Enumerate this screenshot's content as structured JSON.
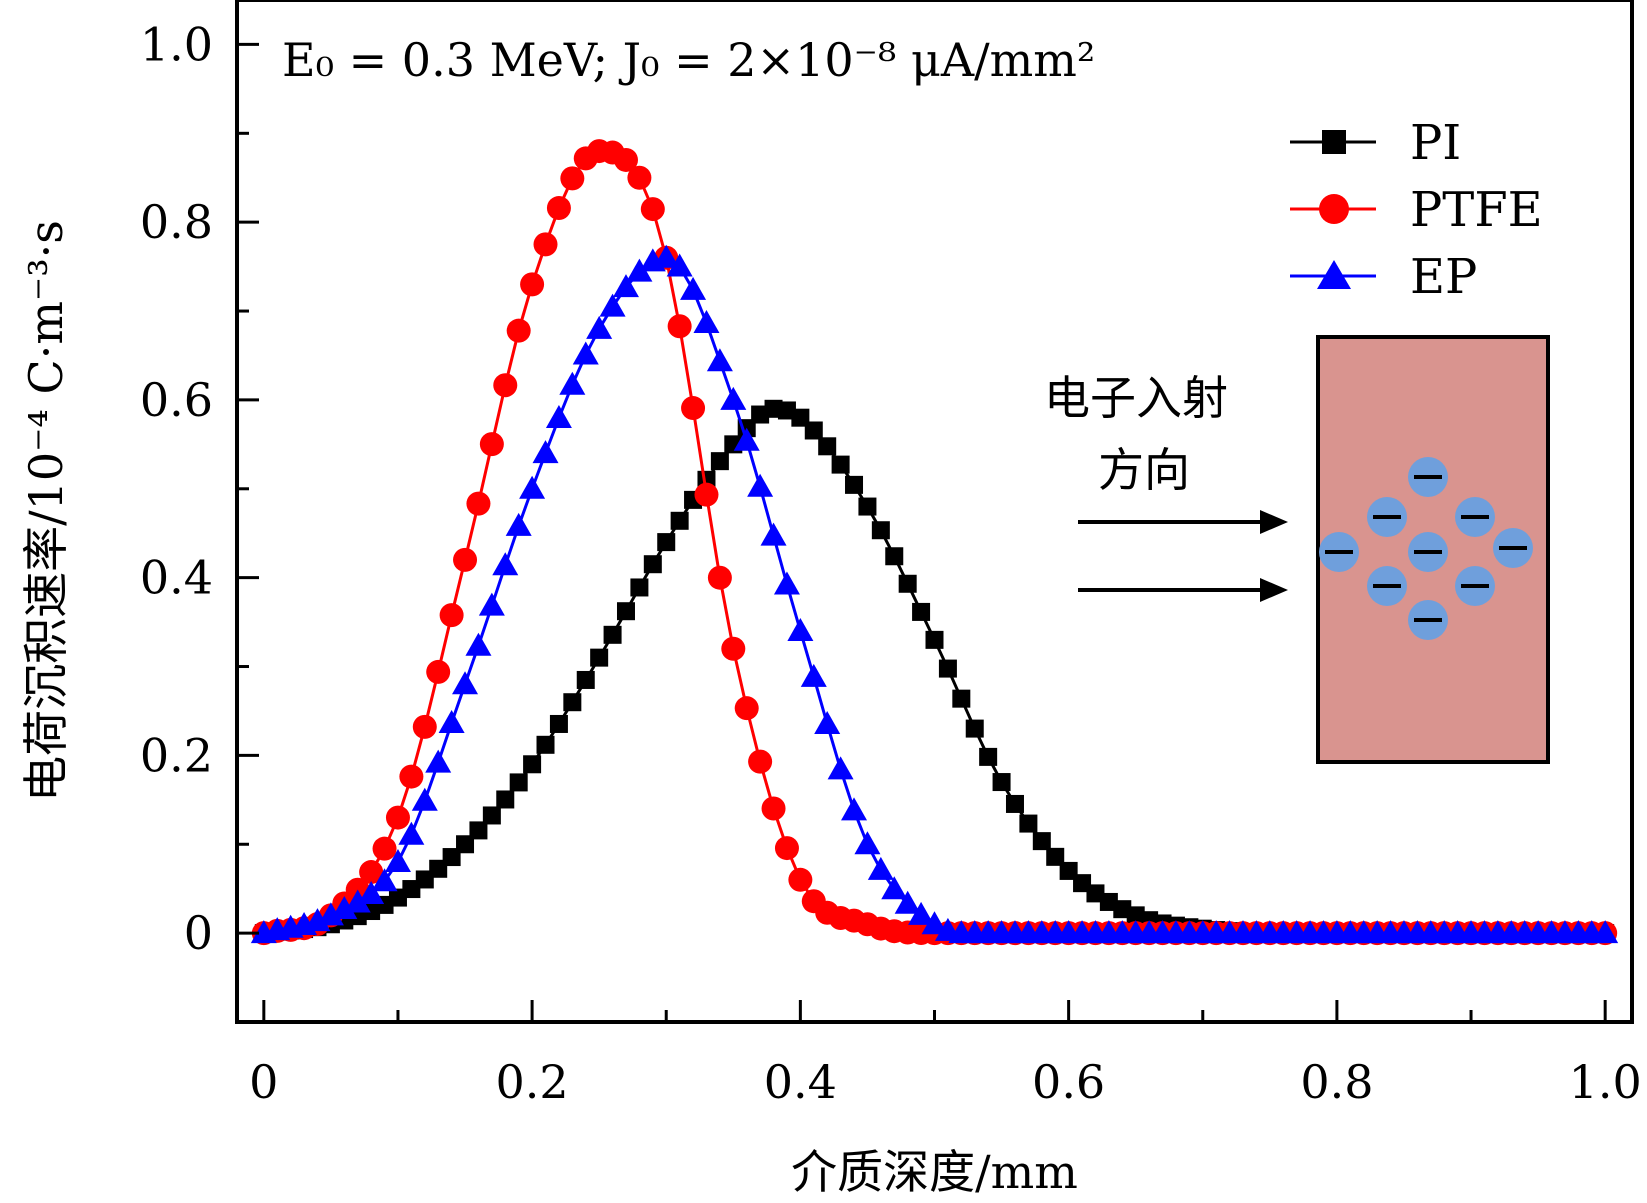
{
  "chart_data": {
    "type": "line",
    "xlabel": "介质深度/mm",
    "ylabel": "电荷沉积速率/10⁻⁴ C·m⁻³·s",
    "xlim": [
      -0.02,
      1.02
    ],
    "ylim": [
      -0.1,
      1.05
    ],
    "x_ticks": [
      0,
      0.2,
      0.4,
      0.6,
      0.8,
      1.0
    ],
    "x_tick_labels": [
      "0",
      "0.2",
      "0.4",
      "0.6",
      "0.8",
      "1.0"
    ],
    "y_ticks": [
      0,
      0.2,
      0.4,
      0.6,
      0.8,
      1.0
    ],
    "y_tick_labels": [
      "0",
      "0.2",
      "0.4",
      "0.6",
      "0.8",
      "1.0"
    ],
    "annotation": "E₀ = 0.3 MeV; J₀ = 2×10⁻⁸ μA/mm²",
    "legend_position": "top-right",
    "grid": false,
    "series": [
      {
        "name": "PI",
        "color": "#000000",
        "marker": "square",
        "x": [
          0,
          0.05,
          0.1,
          0.15,
          0.2,
          0.25,
          0.3,
          0.35,
          0.38,
          0.4,
          0.45,
          0.5,
          0.55,
          0.6,
          0.65,
          0.7,
          0.8,
          0.9,
          1.0
        ],
        "values": [
          0.0,
          0.01,
          0.04,
          0.1,
          0.19,
          0.31,
          0.44,
          0.55,
          0.59,
          0.58,
          0.48,
          0.33,
          0.17,
          0.07,
          0.02,
          0.005,
          0.0,
          0.0,
          0.0
        ]
      },
      {
        "name": "PTFE",
        "color": "#ff0000",
        "marker": "circle",
        "x": [
          0,
          0.05,
          0.1,
          0.15,
          0.2,
          0.25,
          0.28,
          0.3,
          0.35,
          0.4,
          0.45,
          0.5,
          0.55,
          0.6,
          0.8,
          1.0
        ],
        "values": [
          0.0,
          0.02,
          0.13,
          0.42,
          0.73,
          0.88,
          0.85,
          0.76,
          0.32,
          0.06,
          0.01,
          0.0,
          0.0,
          0.0,
          0.0,
          0.0
        ]
      },
      {
        "name": "EP",
        "color": "#0000ff",
        "marker": "triangle",
        "x": [
          0,
          0.05,
          0.1,
          0.15,
          0.2,
          0.25,
          0.3,
          0.35,
          0.4,
          0.45,
          0.5,
          0.55,
          0.6,
          0.8,
          1.0
        ],
        "values": [
          0.0,
          0.02,
          0.08,
          0.28,
          0.5,
          0.68,
          0.76,
          0.6,
          0.34,
          0.1,
          0.01,
          0.0,
          0.0,
          0.0,
          0.0
        ]
      }
    ]
  },
  "inset": {
    "caption_line1": "电子入射",
    "caption_line2": "方向",
    "block_color": "#d9948f",
    "charge_color": "#6f9fdc",
    "charge_symbol": "−",
    "charge_count": 9
  }
}
